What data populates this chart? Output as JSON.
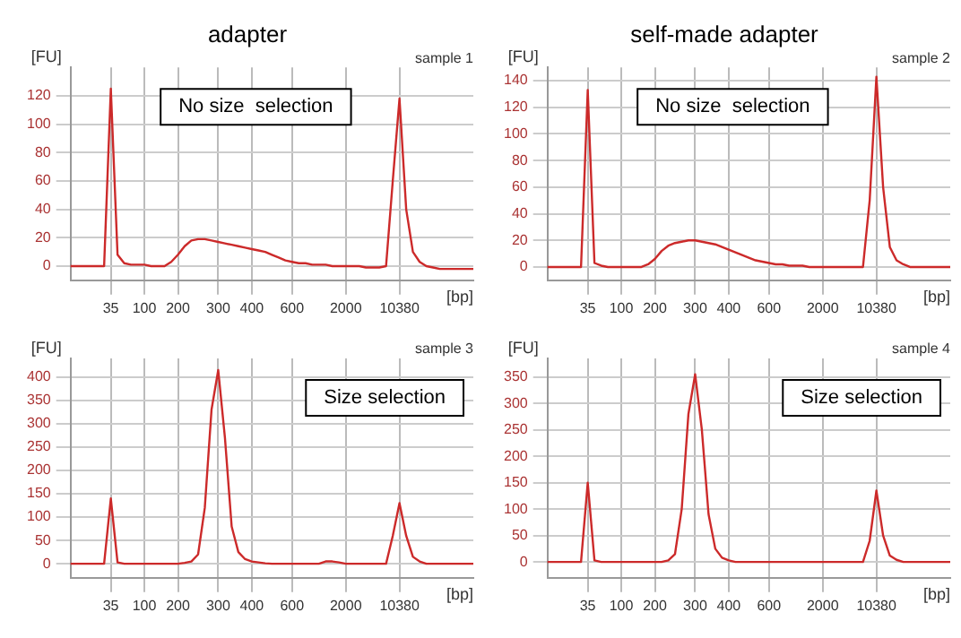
{
  "chart_data": [
    {
      "type": "line",
      "title": "adapter",
      "xlabel": "[bp]",
      "ylabel": "[FU]",
      "categories": [
        null,
        null,
        null,
        null,
        null,
        null,
        "35",
        null,
        null,
        null,
        null,
        "100",
        null,
        null,
        null,
        null,
        "200",
        null,
        null,
        null,
        null,
        null,
        "300",
        null,
        null,
        null,
        null,
        "400",
        null,
        null,
        null,
        null,
        null,
        "600",
        null,
        null,
        null,
        null,
        null,
        null,
        null,
        "2000",
        null,
        null,
        null,
        null,
        null,
        null,
        null,
        "10380",
        null,
        null,
        null,
        null,
        null,
        null,
        null,
        null,
        null,
        null,
        null
      ],
      "series": [
        {
          "color": "#cc2a2a",
          "values": [
            0,
            0,
            0,
            0,
            0,
            0,
            125,
            8,
            2,
            1,
            1,
            1,
            0,
            0,
            0,
            3,
            8,
            14,
            18,
            19,
            19,
            18,
            17,
            16,
            15,
            14,
            13,
            12,
            11,
            10,
            8,
            6,
            4,
            3,
            2,
            2,
            1,
            1,
            1,
            0,
            0,
            0,
            0,
            0,
            -1,
            -1,
            -1,
            0,
            60,
            118,
            40,
            10,
            3,
            0,
            -1,
            -2,
            -2,
            -2,
            -2,
            -2,
            -2
          ]
        }
      ],
      "ylim": [
        -10,
        140
      ],
      "yticks": [
        0,
        20,
        40,
        60,
        80,
        100,
        120
      ],
      "grid": true,
      "marker": "none",
      "annotations": [
        "sample 1",
        "No size  selection"
      ]
    },
    {
      "type": "line",
      "title": "self-made adapter",
      "xlabel": "[bp]",
      "ylabel": "[FU]",
      "categories": [
        null,
        null,
        null,
        null,
        null,
        null,
        "35",
        null,
        null,
        null,
        null,
        "100",
        null,
        null,
        null,
        null,
        "200",
        null,
        null,
        null,
        null,
        null,
        "300",
        null,
        null,
        null,
        null,
        "400",
        null,
        null,
        null,
        null,
        null,
        "600",
        null,
        null,
        null,
        null,
        null,
        null,
        null,
        "2000",
        null,
        null,
        null,
        null,
        null,
        null,
        null,
        "10380",
        null,
        null,
        null,
        null,
        null,
        null,
        null,
        null,
        null,
        null,
        null
      ],
      "series": [
        {
          "color": "#cc2a2a",
          "values": [
            0,
            0,
            0,
            0,
            0,
            0,
            133,
            3,
            1,
            0,
            0,
            0,
            0,
            0,
            0,
            2,
            6,
            12,
            16,
            18,
            19,
            20,
            20,
            19,
            18,
            17,
            15,
            13,
            11,
            9,
            7,
            5,
            4,
            3,
            2,
            2,
            1,
            1,
            1,
            0,
            0,
            0,
            0,
            0,
            0,
            0,
            0,
            0,
            50,
            143,
            60,
            15,
            5,
            2,
            0,
            0,
            0,
            0,
            0,
            0,
            0
          ]
        }
      ],
      "ylim": [
        -10,
        150
      ],
      "yticks": [
        0,
        20,
        40,
        60,
        80,
        100,
        120,
        140
      ],
      "grid": true,
      "marker": "none",
      "annotations": [
        "sample 2",
        "No size  selection"
      ]
    },
    {
      "type": "line",
      "xlabel": "[bp]",
      "ylabel": "[FU]",
      "categories": [
        null,
        null,
        null,
        null,
        null,
        null,
        "35",
        null,
        null,
        null,
        null,
        "100",
        null,
        null,
        null,
        null,
        "200",
        null,
        null,
        null,
        null,
        null,
        "300",
        null,
        null,
        null,
        null,
        "400",
        null,
        null,
        null,
        null,
        null,
        "600",
        null,
        null,
        null,
        null,
        null,
        null,
        null,
        "2000",
        null,
        null,
        null,
        null,
        null,
        null,
        null,
        "10380",
        null,
        null,
        null,
        null,
        null,
        null,
        null,
        null,
        null,
        null,
        null
      ],
      "series": [
        {
          "color": "#cc2a2a",
          "values": [
            0,
            0,
            0,
            0,
            0,
            0,
            140,
            3,
            0,
            0,
            0,
            0,
            0,
            0,
            0,
            0,
            0,
            2,
            5,
            20,
            120,
            330,
            415,
            270,
            80,
            25,
            10,
            5,
            3,
            1,
            0,
            0,
            0,
            0,
            0,
            0,
            0,
            0,
            5,
            5,
            3,
            0,
            0,
            0,
            0,
            0,
            0,
            0,
            60,
            130,
            60,
            15,
            5,
            0,
            0,
            0,
            0,
            0,
            0,
            0,
            0
          ]
        }
      ],
      "ylim": [
        -30,
        440
      ],
      "yticks": [
        0,
        50,
        100,
        150,
        200,
        250,
        300,
        350,
        400
      ],
      "grid": true,
      "marker": "none",
      "annotations": [
        "sample 3",
        "Size selection"
      ]
    },
    {
      "type": "line",
      "xlabel": "[bp]",
      "ylabel": "[FU]",
      "categories": [
        null,
        null,
        null,
        null,
        null,
        null,
        "35",
        null,
        null,
        null,
        null,
        "100",
        null,
        null,
        null,
        null,
        "200",
        null,
        null,
        null,
        null,
        null,
        "300",
        null,
        null,
        null,
        null,
        "400",
        null,
        null,
        null,
        null,
        null,
        "600",
        null,
        null,
        null,
        null,
        null,
        null,
        null,
        "2000",
        null,
        null,
        null,
        null,
        null,
        null,
        null,
        "10380",
        null,
        null,
        null,
        null,
        null,
        null,
        null,
        null,
        null,
        null,
        null
      ],
      "series": [
        {
          "color": "#cc2a2a",
          "values": [
            0,
            0,
            0,
            0,
            0,
            0,
            150,
            3,
            0,
            0,
            0,
            0,
            0,
            0,
            0,
            0,
            0,
            0,
            3,
            15,
            100,
            280,
            355,
            250,
            90,
            25,
            8,
            3,
            0,
            0,
            0,
            0,
            0,
            0,
            0,
            0,
            0,
            0,
            0,
            0,
            0,
            0,
            0,
            0,
            0,
            0,
            0,
            0,
            40,
            135,
            50,
            12,
            4,
            0,
            0,
            0,
            0,
            0,
            0,
            0,
            0
          ]
        }
      ],
      "ylim": [
        -30,
        385
      ],
      "yticks": [
        0,
        50,
        100,
        150,
        200,
        250,
        300,
        350
      ],
      "grid": true,
      "marker": "none",
      "annotations": [
        "sample 4",
        "Size selection"
      ]
    }
  ]
}
